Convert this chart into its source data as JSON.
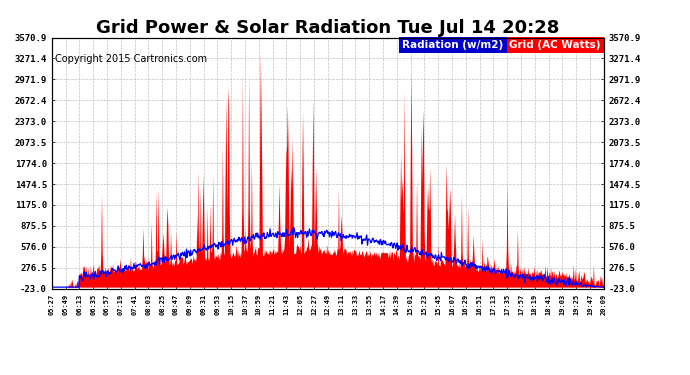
{
  "title": "Grid Power & Solar Radiation Tue Jul 14 20:28",
  "copyright": "Copyright 2015 Cartronics.com",
  "legend_radiation": "Radiation (w/m2)",
  "legend_grid": "Grid (AC Watts)",
  "yticks": [
    3570.9,
    3271.4,
    2971.9,
    2672.4,
    2373.0,
    2073.5,
    1774.0,
    1474.5,
    1175.0,
    875.5,
    576.0,
    276.5,
    -23.0
  ],
  "ymin": -23.0,
  "ymax": 3570.9,
  "xtick_labels": [
    "05:27",
    "05:49",
    "06:13",
    "06:35",
    "06:57",
    "07:19",
    "07:41",
    "08:03",
    "08:25",
    "08:47",
    "09:09",
    "09:31",
    "09:53",
    "10:15",
    "10:37",
    "10:59",
    "11:21",
    "11:43",
    "12:05",
    "12:27",
    "12:49",
    "13:11",
    "13:33",
    "13:55",
    "14:17",
    "14:39",
    "15:01",
    "15:23",
    "15:45",
    "16:07",
    "16:29",
    "16:51",
    "17:13",
    "17:35",
    "17:57",
    "18:19",
    "18:41",
    "19:03",
    "19:25",
    "19:47",
    "20:09"
  ],
  "background_color": "#ffffff",
  "plot_bg": "#ffffff",
  "grid_color": "#c0c0c0",
  "radiation_color": "#0000ff",
  "grid_power_color": "#ff0000",
  "title_fontsize": 13,
  "copyright_fontsize": 7,
  "legend_fontsize": 7.5,
  "legend_rad_bg": "#0000cc",
  "legend_grid_bg": "#ff0000"
}
